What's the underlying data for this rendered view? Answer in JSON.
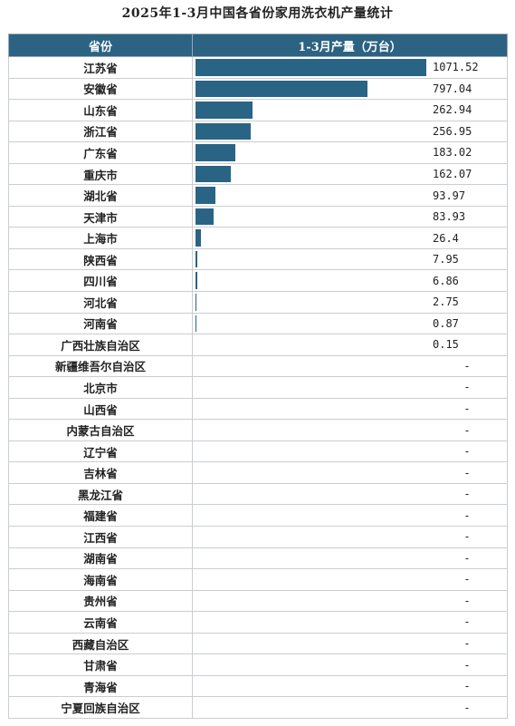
{
  "title": "2025年1-3月中国各省份家用洗衣机产量统计",
  "table": {
    "col_province": "省份",
    "col_value": "1-3月产量（万台）"
  },
  "colors": {
    "header_bg": "#2c6282",
    "bar": "#2a6485"
  },
  "chart_data": {
    "type": "bar",
    "orientation": "horizontal",
    "title": "2025年1-3月中国各省份家用洗衣机产量统计",
    "xlabel": "1-3月产量（万台）",
    "ylabel": "省份",
    "xlim": [
      0,
      1071.52
    ],
    "categories": [
      "江苏省",
      "安徽省",
      "山东省",
      "浙江省",
      "广东省",
      "重庆市",
      "湖北省",
      "天津市",
      "上海市",
      "陕西省",
      "四川省",
      "河北省",
      "河南省",
      "广西壮族自治区",
      "新疆维吾尔自治区",
      "北京市",
      "山西省",
      "内蒙古自治区",
      "辽宁省",
      "吉林省",
      "黑龙江省",
      "福建省",
      "江西省",
      "湖南省",
      "海南省",
      "贵州省",
      "云南省",
      "西藏自治区",
      "甘肃省",
      "青海省",
      "宁夏回族自治区"
    ],
    "values": [
      1071.52,
      797.04,
      262.94,
      256.95,
      183.02,
      162.07,
      93.97,
      83.93,
      26.4,
      7.95,
      6.86,
      2.75,
      0.87,
      0.15,
      null,
      null,
      null,
      null,
      null,
      null,
      null,
      null,
      null,
      null,
      null,
      null,
      null,
      null,
      null,
      null,
      null
    ],
    "labels": [
      "1071.52",
      "797.04",
      "262.94",
      "256.95",
      "183.02",
      "162.07",
      "93.97",
      "83.93",
      "26.4",
      "7.95",
      "6.86",
      "2.75",
      "0.87",
      "0.15",
      "-",
      "-",
      "-",
      "-",
      "-",
      "-",
      "-",
      "-",
      "-",
      "-",
      "-",
      "-",
      "-",
      "-",
      "-",
      "-",
      "-"
    ]
  }
}
